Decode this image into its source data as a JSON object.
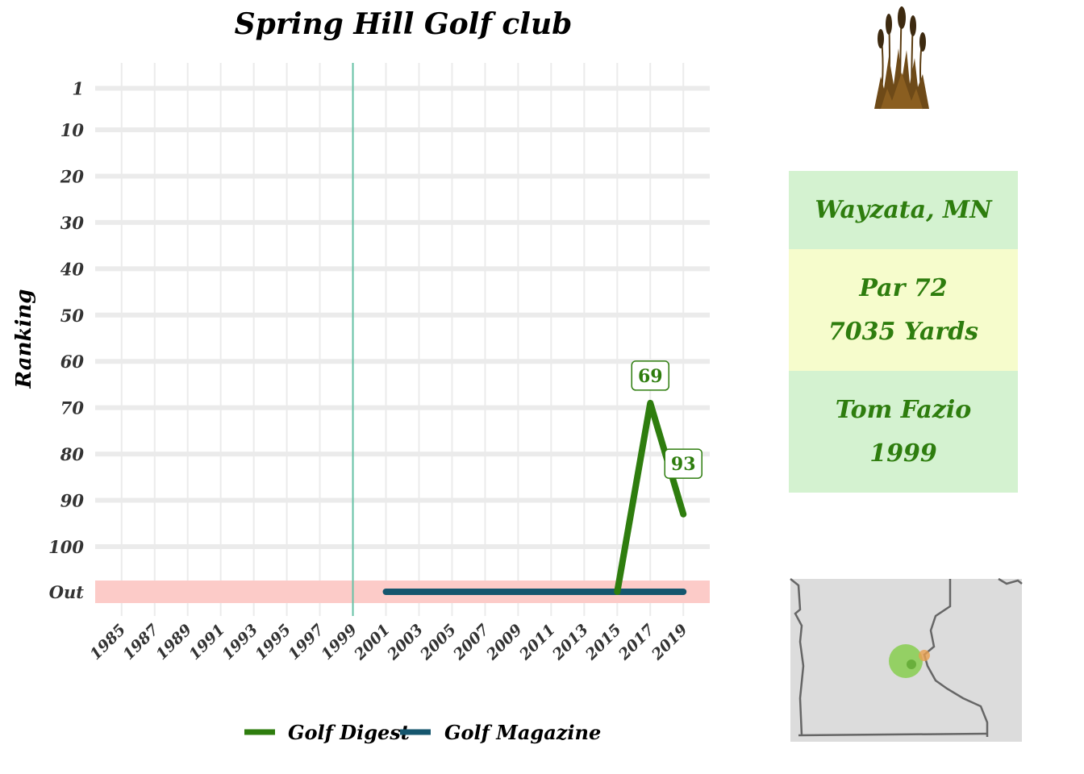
{
  "chart_data": {
    "type": "line",
    "title": "Spring Hill Golf club",
    "ylabel": "Ranking",
    "xlabel": "",
    "x_ticks": [
      1985,
      1987,
      1989,
      1991,
      1993,
      1995,
      1997,
      1999,
      2001,
      2003,
      2005,
      2007,
      2009,
      2011,
      2013,
      2015,
      2017,
      2019
    ],
    "xlim": [
      1983.4,
      2020.6
    ],
    "y_ticks": [
      "1",
      "10",
      "20",
      "30",
      "40",
      "50",
      "60",
      "70",
      "80",
      "90",
      "100",
      "Out"
    ],
    "y_tick_values": [
      1,
      10,
      20,
      30,
      40,
      50,
      60,
      70,
      80,
      90,
      100,
      110
    ],
    "out_value": 110,
    "grid": true,
    "legend_position": "bottom",
    "opened_year": 1999,
    "series": [
      {
        "name": "Golf Digest",
        "color": "#2e7d0e",
        "points": [
          {
            "x": 2015,
            "y": "Out"
          },
          {
            "x": 2017,
            "y": 69
          },
          {
            "x": 2019,
            "y": 93
          }
        ],
        "data_labels": [
          {
            "x": 2017,
            "y": 69,
            "text": "69"
          },
          {
            "x": 2019,
            "y": 88,
            "text": "93"
          }
        ]
      },
      {
        "name": "Golf Magazine",
        "color": "#15566e",
        "points": [
          {
            "x": 2001,
            "y": "Out"
          },
          {
            "x": 2019,
            "y": "Out"
          }
        ],
        "data_labels": []
      }
    ]
  },
  "info": {
    "location": "Wayzata, MN",
    "par": "Par 72",
    "yardage": "7035 Yards",
    "architect": "Tom Fazio",
    "year": "1999"
  },
  "colors": {
    "opened_line": "#66c2a5",
    "out_band": "#fccbc8",
    "grid": "#ebebeb",
    "card_green": "#d4f2d0",
    "card_yellow": "#f6fccc",
    "map_land": "#dcdcdc",
    "map_border": "#666666",
    "map_marker_large": "#7ccc3c",
    "map_marker_small": "#e8a050"
  },
  "icons": {
    "logo": "cattail-grass-icon",
    "map": "minnesota-region-map"
  }
}
